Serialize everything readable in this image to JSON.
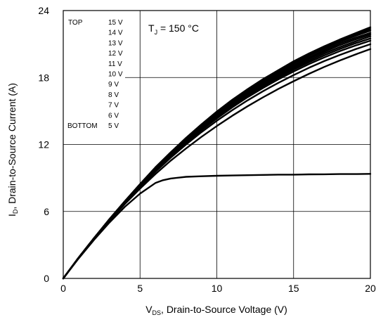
{
  "chart_data": {
    "type": "line",
    "title": "",
    "xlabel": {
      "main": "V",
      "sub": "DS",
      "rest": ", Drain-to-Source Voltage (V)"
    },
    "ylabel": {
      "main": "I",
      "sub": "D",
      "rest": ", Drain-to-Source Current (A)"
    },
    "xlim": [
      0,
      20
    ],
    "ylim": [
      0,
      24
    ],
    "x_ticks": [
      0,
      5,
      10,
      15,
      20
    ],
    "y_ticks": [
      0,
      6,
      12,
      18,
      24
    ],
    "grid": true,
    "annotation": {
      "main": "T",
      "sub": "J",
      "rest": " = 150 °C"
    },
    "legend": {
      "placement": "top-left",
      "top_label": "TOP",
      "bottom_label": "BOTTOM",
      "entries": [
        "15 V",
        "14 V",
        "13 V",
        "12 V",
        "11 V",
        "10 V",
        "9 V",
        "8 V",
        "7 V",
        "6 V",
        "5 V"
      ]
    },
    "series": [
      {
        "x": [
          0,
          1,
          2,
          3,
          4,
          5,
          6,
          7,
          8,
          9,
          10,
          11,
          12,
          13,
          14,
          15,
          16,
          17,
          18,
          19,
          20
        ],
        "values": [
          0,
          1.85,
          3.6,
          5.3,
          6.9,
          8.45,
          9.95,
          11.3,
          12.6,
          13.8,
          14.95,
          16.0,
          16.95,
          17.85,
          18.65,
          19.45,
          20.15,
          20.8,
          21.4,
          21.95,
          22.5
        ]
      },
      {
        "x": [
          0,
          1,
          2,
          3,
          4,
          5,
          6,
          7,
          8,
          9,
          10,
          11,
          12,
          13,
          14,
          15,
          16,
          17,
          18,
          19,
          20
        ],
        "values": [
          0,
          1.85,
          3.6,
          5.3,
          6.9,
          8.45,
          9.93,
          11.27,
          12.55,
          13.75,
          14.88,
          15.92,
          16.88,
          17.77,
          18.57,
          19.35,
          20.05,
          20.7,
          21.3,
          21.85,
          22.35
        ]
      },
      {
        "x": [
          0,
          1,
          2,
          3,
          4,
          5,
          6,
          7,
          8,
          9,
          10,
          11,
          12,
          13,
          14,
          15,
          16,
          17,
          18,
          19,
          20
        ],
        "values": [
          0,
          1.85,
          3.6,
          5.3,
          6.9,
          8.45,
          9.9,
          11.23,
          12.5,
          13.7,
          14.82,
          15.85,
          16.8,
          17.68,
          18.48,
          19.25,
          19.95,
          20.6,
          21.2,
          21.72,
          22.2
        ]
      },
      {
        "x": [
          0,
          1,
          2,
          3,
          4,
          5,
          6,
          7,
          8,
          9,
          10,
          11,
          12,
          13,
          14,
          15,
          16,
          17,
          18,
          19,
          20
        ],
        "values": [
          0,
          1.85,
          3.6,
          5.28,
          6.87,
          8.4,
          9.85,
          11.18,
          12.44,
          13.63,
          14.74,
          15.76,
          16.7,
          17.57,
          18.36,
          19.1,
          19.8,
          20.45,
          21.05,
          21.55,
          22.0
        ]
      },
      {
        "x": [
          0,
          1,
          2,
          3,
          4,
          5,
          6,
          7,
          8,
          9,
          10,
          11,
          12,
          13,
          14,
          15,
          16,
          17,
          18,
          19,
          20
        ],
        "values": [
          0,
          1.85,
          3.6,
          5.27,
          6.85,
          8.37,
          9.8,
          11.12,
          12.37,
          13.55,
          14.65,
          15.66,
          16.6,
          17.46,
          18.25,
          18.98,
          19.67,
          20.3,
          20.9,
          21.4,
          21.85
        ]
      },
      {
        "x": [
          0,
          1,
          2,
          3,
          4,
          5,
          6,
          7,
          8,
          9,
          10,
          11,
          12,
          13,
          14,
          15,
          16,
          17,
          18,
          19,
          20
        ],
        "values": [
          0,
          1.85,
          3.6,
          5.25,
          6.83,
          8.33,
          9.75,
          11.05,
          12.3,
          13.46,
          14.55,
          15.55,
          16.48,
          17.33,
          18.12,
          18.85,
          19.52,
          20.15,
          20.72,
          21.22,
          21.7
        ]
      },
      {
        "x": [
          0,
          1,
          2,
          3,
          4,
          5,
          6,
          7,
          8,
          9,
          10,
          11,
          12,
          13,
          14,
          15,
          16,
          17,
          18,
          19,
          20
        ],
        "values": [
          0,
          1.85,
          3.6,
          5.25,
          6.8,
          8.3,
          9.7,
          11.0,
          12.22,
          13.37,
          14.45,
          15.45,
          16.37,
          17.2,
          17.98,
          18.7,
          19.37,
          19.98,
          20.55,
          21.05,
          21.5
        ]
      },
      {
        "x": [
          0,
          1,
          2,
          3,
          4,
          5,
          6,
          7,
          8,
          9,
          10,
          11,
          12,
          13,
          14,
          15,
          16,
          17,
          18,
          19,
          20
        ],
        "values": [
          0,
          1.85,
          3.6,
          5.23,
          6.78,
          8.25,
          9.63,
          10.93,
          12.13,
          13.27,
          14.33,
          15.32,
          16.23,
          17.06,
          17.83,
          18.54,
          19.2,
          19.8,
          20.36,
          20.85,
          21.3
        ]
      },
      {
        "x": [
          0,
          1,
          2,
          3,
          4,
          5,
          6,
          7,
          8,
          9,
          10,
          11,
          12,
          13,
          14,
          15,
          16,
          17,
          18,
          19,
          20
        ],
        "values": [
          0,
          1.85,
          3.58,
          5.2,
          6.75,
          8.2,
          9.55,
          10.82,
          12.0,
          13.1,
          14.12,
          15.07,
          15.95,
          16.77,
          17.52,
          18.22,
          18.87,
          19.47,
          20.02,
          20.52,
          20.98
        ]
      },
      {
        "x": [
          0,
          1,
          2,
          3,
          4,
          5,
          6,
          7,
          8,
          9,
          10,
          11,
          12,
          13,
          14,
          15,
          16,
          17,
          18,
          19,
          20
        ],
        "values": [
          0,
          1.83,
          3.55,
          5.15,
          6.65,
          8.05,
          9.35,
          10.55,
          11.65,
          12.68,
          13.65,
          14.57,
          15.42,
          16.22,
          16.97,
          17.67,
          18.33,
          18.95,
          19.52,
          20.05,
          20.55
        ]
      },
      {
        "x": [
          0,
          1,
          2,
          3,
          4,
          5,
          6,
          6.5,
          7,
          8,
          9,
          10,
          11,
          12,
          13,
          14,
          15,
          16,
          17,
          18,
          19,
          20
        ],
        "values": [
          0,
          1.78,
          3.45,
          5.0,
          6.4,
          7.6,
          8.55,
          8.8,
          8.95,
          9.1,
          9.15,
          9.2,
          9.22,
          9.25,
          9.27,
          9.3,
          9.3,
          9.32,
          9.33,
          9.35,
          9.35,
          9.37
        ]
      }
    ]
  }
}
